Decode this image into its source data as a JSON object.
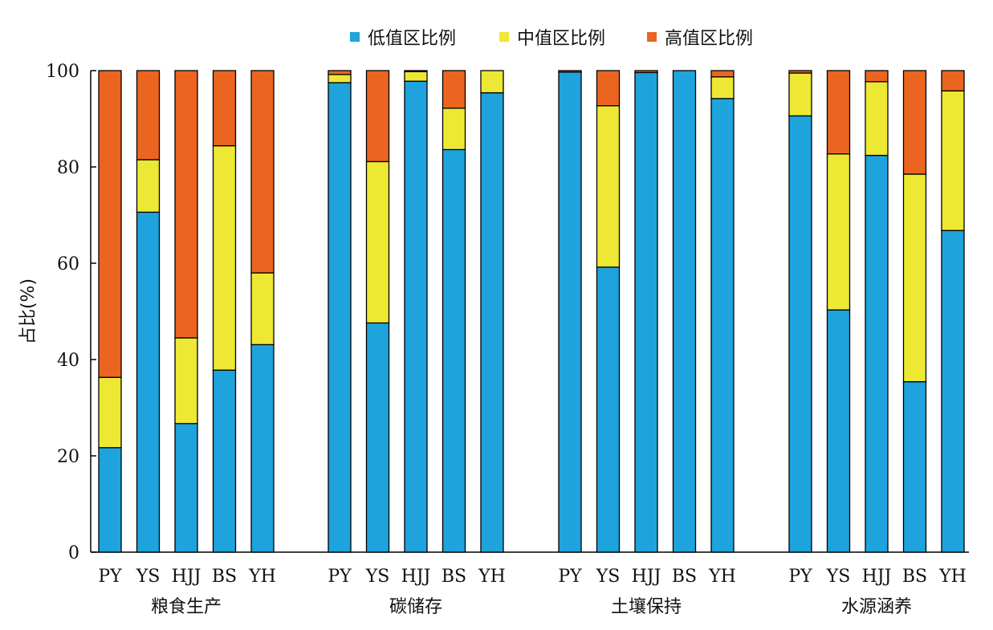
{
  "chart_data": {
    "type": "bar",
    "stacked": true,
    "ylabel": "占比(%)",
    "ylim": [
      0,
      100
    ],
    "yticks": [
      0,
      20,
      40,
      60,
      80,
      100
    ],
    "grid": false,
    "legend_position": "top-center",
    "groups": [
      {
        "name": "粮食生产",
        "categories": [
          "PY",
          "YS",
          "HJJ",
          "BS",
          "YH"
        ],
        "series": [
          {
            "name": "低值区比例",
            "values": [
              21.7,
              70.6,
              26.7,
              37.8,
              43.1
            ]
          },
          {
            "name": "中值区比例",
            "values": [
              14.6,
              10.9,
              17.8,
              46.6,
              14.9
            ]
          },
          {
            "name": "高值区比例",
            "values": [
              63.7,
              18.5,
              55.5,
              15.6,
              42.0
            ]
          }
        ]
      },
      {
        "name": "碳储存",
        "categories": [
          "PY",
          "YS",
          "HJJ",
          "BS",
          "YH"
        ],
        "series": [
          {
            "name": "低值区比例",
            "values": [
              97.5,
              47.6,
              97.8,
              83.6,
              95.4
            ]
          },
          {
            "name": "中值区比例",
            "values": [
              1.7,
              33.5,
              2.0,
              8.6,
              4.6
            ]
          },
          {
            "name": "高值区比例",
            "values": [
              0.8,
              18.9,
              0.2,
              7.8,
              0.0
            ]
          }
        ]
      },
      {
        "name": "土壤保持",
        "categories": [
          "PY",
          "YS",
          "HJJ",
          "BS",
          "YH"
        ],
        "series": [
          {
            "name": "低值区比例",
            "values": [
              99.7,
              59.2,
              99.6,
              100.0,
              94.2
            ]
          },
          {
            "name": "中值区比例",
            "values": [
              0.0,
              33.5,
              0.0,
              0.0,
              4.5
            ]
          },
          {
            "name": "高值区比例",
            "values": [
              0.3,
              7.3,
              0.4,
              0.0,
              1.3
            ]
          }
        ]
      },
      {
        "name": "水源涵养",
        "categories": [
          "PY",
          "YS",
          "HJJ",
          "BS",
          "YH"
        ],
        "series": [
          {
            "name": "低值区比例",
            "values": [
              90.6,
              50.3,
              82.4,
              35.4,
              66.8
            ]
          },
          {
            "name": "中值区比例",
            "values": [
              8.9,
              32.4,
              15.3,
              43.1,
              29.0
            ]
          },
          {
            "name": "高值区比例",
            "values": [
              0.5,
              17.3,
              2.3,
              21.5,
              4.2
            ]
          }
        ]
      }
    ],
    "colors": {
      "低值区比例": "#1FA3DD",
      "中值区比例": "#EDE834",
      "高值区比例": "#EB6521"
    }
  }
}
